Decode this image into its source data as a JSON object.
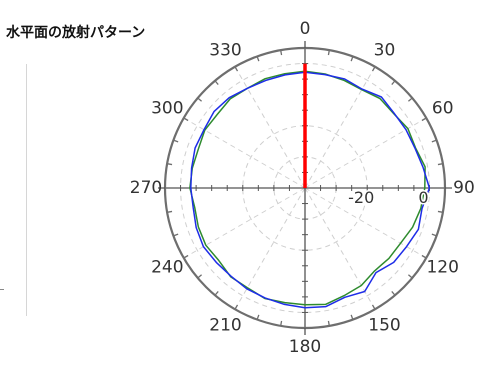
{
  "title": "水平面の放射パターン",
  "chart_data": {
    "type": "polar-line",
    "title": "水平面の放射パターン",
    "angle_unit": "deg",
    "angle_direction": "clockwise",
    "zero_at": "top",
    "angle_labels": [
      "0",
      "30",
      "60",
      "90",
      "120",
      "150",
      "180",
      "210",
      "240",
      "270",
      "300",
      "330"
    ],
    "radial_labels": [
      "-20",
      "0"
    ],
    "radial_range": [
      -40,
      5
    ],
    "grid": true,
    "series": [
      {
        "color": "#2e8b2e",
        "points": [
          [
            0,
            -2.5
          ],
          [
            10,
            -2.8
          ],
          [
            20,
            -3.2
          ],
          [
            30,
            -3.5
          ],
          [
            40,
            -2.5
          ],
          [
            50,
            -2.8
          ],
          [
            60,
            -1.8
          ],
          [
            70,
            -2.2
          ],
          [
            80,
            -0.8
          ],
          [
            90,
            -1.5
          ],
          [
            100,
            -2.2
          ],
          [
            110,
            -3.2
          ],
          [
            120,
            -4.5
          ],
          [
            130,
            -4.8
          ],
          [
            140,
            -5.2
          ],
          [
            150,
            -3.8
          ],
          [
            160,
            -3.2
          ],
          [
            170,
            -2.0
          ],
          [
            180,
            -2.5
          ],
          [
            190,
            -2.6
          ],
          [
            200,
            -2.2
          ],
          [
            210,
            -3.0
          ],
          [
            220,
            -2.8
          ],
          [
            230,
            -3.8
          ],
          [
            240,
            -3.2
          ],
          [
            250,
            -3.5
          ],
          [
            260,
            -4.0
          ],
          [
            270,
            -3.0
          ],
          [
            280,
            -3.2
          ],
          [
            290,
            -3.5
          ],
          [
            300,
            -2.8
          ],
          [
            310,
            -3.2
          ],
          [
            320,
            -2.6
          ],
          [
            330,
            -3.0
          ],
          [
            340,
            -2.6
          ],
          [
            350,
            -2.7
          ]
        ]
      },
      {
        "color": "#1e2de8",
        "points": [
          [
            0,
            -2.8
          ],
          [
            10,
            -3.0
          ],
          [
            20,
            -2.7
          ],
          [
            30,
            -3.3
          ],
          [
            40,
            -1.8
          ],
          [
            50,
            -2.6
          ],
          [
            60,
            -2.5
          ],
          [
            70,
            -2.4
          ],
          [
            80,
            -1.5
          ],
          [
            90,
            0.0
          ],
          [
            100,
            -1.8
          ],
          [
            110,
            -1.2
          ],
          [
            120,
            -2.3
          ],
          [
            130,
            -2.8
          ],
          [
            140,
            -4.5
          ],
          [
            150,
            -1.6
          ],
          [
            160,
            -2.6
          ],
          [
            170,
            -1.3
          ],
          [
            180,
            -1.5
          ],
          [
            190,
            -2.0
          ],
          [
            200,
            -2.4
          ],
          [
            210,
            -2.6
          ],
          [
            220,
            -3.0
          ],
          [
            230,
            -2.8
          ],
          [
            240,
            -2.3
          ],
          [
            250,
            -2.8
          ],
          [
            260,
            -3.5
          ],
          [
            270,
            -3.3
          ],
          [
            280,
            -3.0
          ],
          [
            290,
            -2.4
          ],
          [
            300,
            -2.5
          ],
          [
            310,
            -1.8
          ],
          [
            320,
            -2.1
          ],
          [
            330,
            -3.0
          ],
          [
            340,
            -3.2
          ],
          [
            350,
            -3.1
          ]
        ]
      },
      {
        "color": "#ff0000",
        "points": [
          [
            0,
            -40
          ],
          [
            0,
            0
          ]
        ]
      }
    ]
  }
}
